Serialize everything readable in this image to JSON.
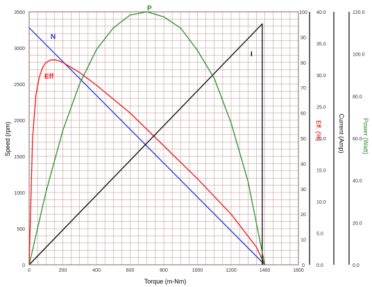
{
  "chart_data": {
    "type": "line",
    "xlabel": "Torque (m-Nm)",
    "x_ticks": [
      "0",
      "200",
      "400",
      "600",
      "800",
      "1000",
      "1200",
      "1400",
      "1600"
    ],
    "xlim": [
      0,
      1600
    ],
    "grid": true,
    "axes": {
      "speed": {
        "label": "Speed (rpm)",
        "ylim": [
          0,
          3500
        ],
        "ticks": [
          "0",
          "500",
          "1000",
          "1500",
          "2000",
          "2500",
          "3000",
          "3500"
        ],
        "color": "#000000"
      },
      "efficiency": {
        "label": "Eff. (%)",
        "ylim": [
          0,
          100
        ],
        "ticks": [
          "0",
          "10",
          "20",
          "30",
          "40",
          "50",
          "60",
          "70",
          "80",
          "90",
          "100"
        ],
        "color": "#dd0000"
      },
      "current": {
        "label": "Current (Amp)",
        "ylim": [
          0,
          40
        ],
        "ticks": [
          "0.0",
          "5.0",
          "10.0",
          "15.0",
          "20.0",
          "25.0",
          "30.0",
          "35.0",
          "40.0"
        ],
        "color": "#000000"
      },
      "power": {
        "label": "Power (Watt)",
        "ylim": [
          0,
          120
        ],
        "ticks": [
          "0.0",
          "20.0",
          "40.0",
          "60.0",
          "80.0",
          "100.0",
          "120.0"
        ],
        "color": "#2a8a2a"
      }
    },
    "series": [
      {
        "name": "N",
        "axis": "speed",
        "color": "#2233cc",
        "x": [
          0,
          1400
        ],
        "y": [
          3280,
          0
        ]
      },
      {
        "name": "Eff",
        "axis": "efficiency",
        "color": "#ee1111",
        "x": [
          0,
          20,
          40,
          60,
          80,
          100,
          130,
          160,
          200,
          300,
          400,
          600,
          800,
          1000,
          1200,
          1350,
          1400
        ],
        "y": [
          0,
          50,
          67,
          74,
          78,
          80,
          81,
          81,
          80,
          76,
          71,
          60,
          47,
          34,
          20,
          7,
          0
        ]
      },
      {
        "name": "I",
        "axis": "current",
        "color": "#000000",
        "x": [
          0,
          1385,
          1385
        ],
        "y": [
          0,
          38.1,
          0
        ]
      },
      {
        "name": "P",
        "axis": "power",
        "color": "#2a8a2a",
        "x": [
          0,
          100,
          200,
          300,
          400,
          500,
          600,
          700,
          800,
          900,
          1000,
          1100,
          1200,
          1300,
          1400
        ],
        "y": [
          0,
          34.6,
          63.7,
          85.9,
          102.1,
          112.4,
          118.5,
          120.0,
          117.6,
          112.3,
          101.7,
          88.4,
          67.3,
          39.6,
          0
        ]
      }
    ]
  }
}
